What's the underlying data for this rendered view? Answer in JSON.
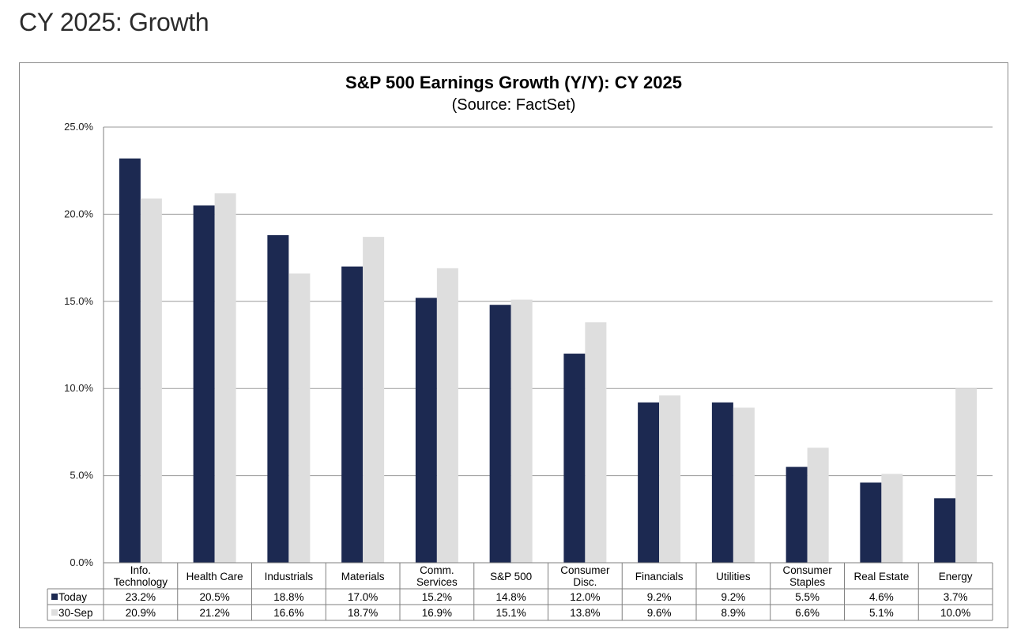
{
  "page": {
    "title": "CY 2025: Growth"
  },
  "colors": {
    "today": "#1c2951",
    "sep30": "#dedede",
    "grid": "#9a9a9a",
    "frame": "#8a8a8a"
  },
  "chart_data": {
    "type": "bar",
    "title": "S&P 500 Earnings Growth (Y/Y): CY 2025",
    "subtitle": "(Source: FactSet)",
    "categories": [
      [
        "Info.",
        "Technology"
      ],
      [
        "Health Care"
      ],
      [
        "Industrials"
      ],
      [
        "Materials"
      ],
      [
        "Comm.",
        "Services"
      ],
      [
        "S&P 500"
      ],
      [
        "Consumer",
        "Disc."
      ],
      [
        "Financials"
      ],
      [
        "Utilities"
      ],
      [
        "Consumer",
        "Staples"
      ],
      [
        "Real Estate"
      ],
      [
        "Energy"
      ]
    ],
    "series": [
      {
        "name": "Today",
        "values": [
          23.2,
          20.5,
          18.8,
          17.0,
          15.2,
          14.8,
          12.0,
          9.2,
          9.2,
          5.5,
          4.6,
          3.7
        ],
        "labels": [
          "23.2%",
          "20.5%",
          "18.8%",
          "17.0%",
          "15.2%",
          "14.8%",
          "12.0%",
          "9.2%",
          "9.2%",
          "5.5%",
          "4.6%",
          "3.7%"
        ]
      },
      {
        "name": "30-Sep",
        "values": [
          20.9,
          21.2,
          16.6,
          18.7,
          16.9,
          15.1,
          13.8,
          9.6,
          8.9,
          6.6,
          5.1,
          10.0
        ],
        "labels": [
          "20.9%",
          "21.2%",
          "16.6%",
          "18.7%",
          "16.9%",
          "15.1%",
          "13.8%",
          "9.6%",
          "8.9%",
          "6.6%",
          "5.1%",
          "10.0%"
        ]
      }
    ],
    "ylim": [
      0,
      25
    ],
    "yticks": [
      0,
      5,
      10,
      15,
      20,
      25
    ],
    "ytick_labels": [
      "0.0%",
      "5.0%",
      "10.0%",
      "15.0%",
      "20.0%",
      "25.0%"
    ],
    "grid": true,
    "legend": "data-table"
  }
}
